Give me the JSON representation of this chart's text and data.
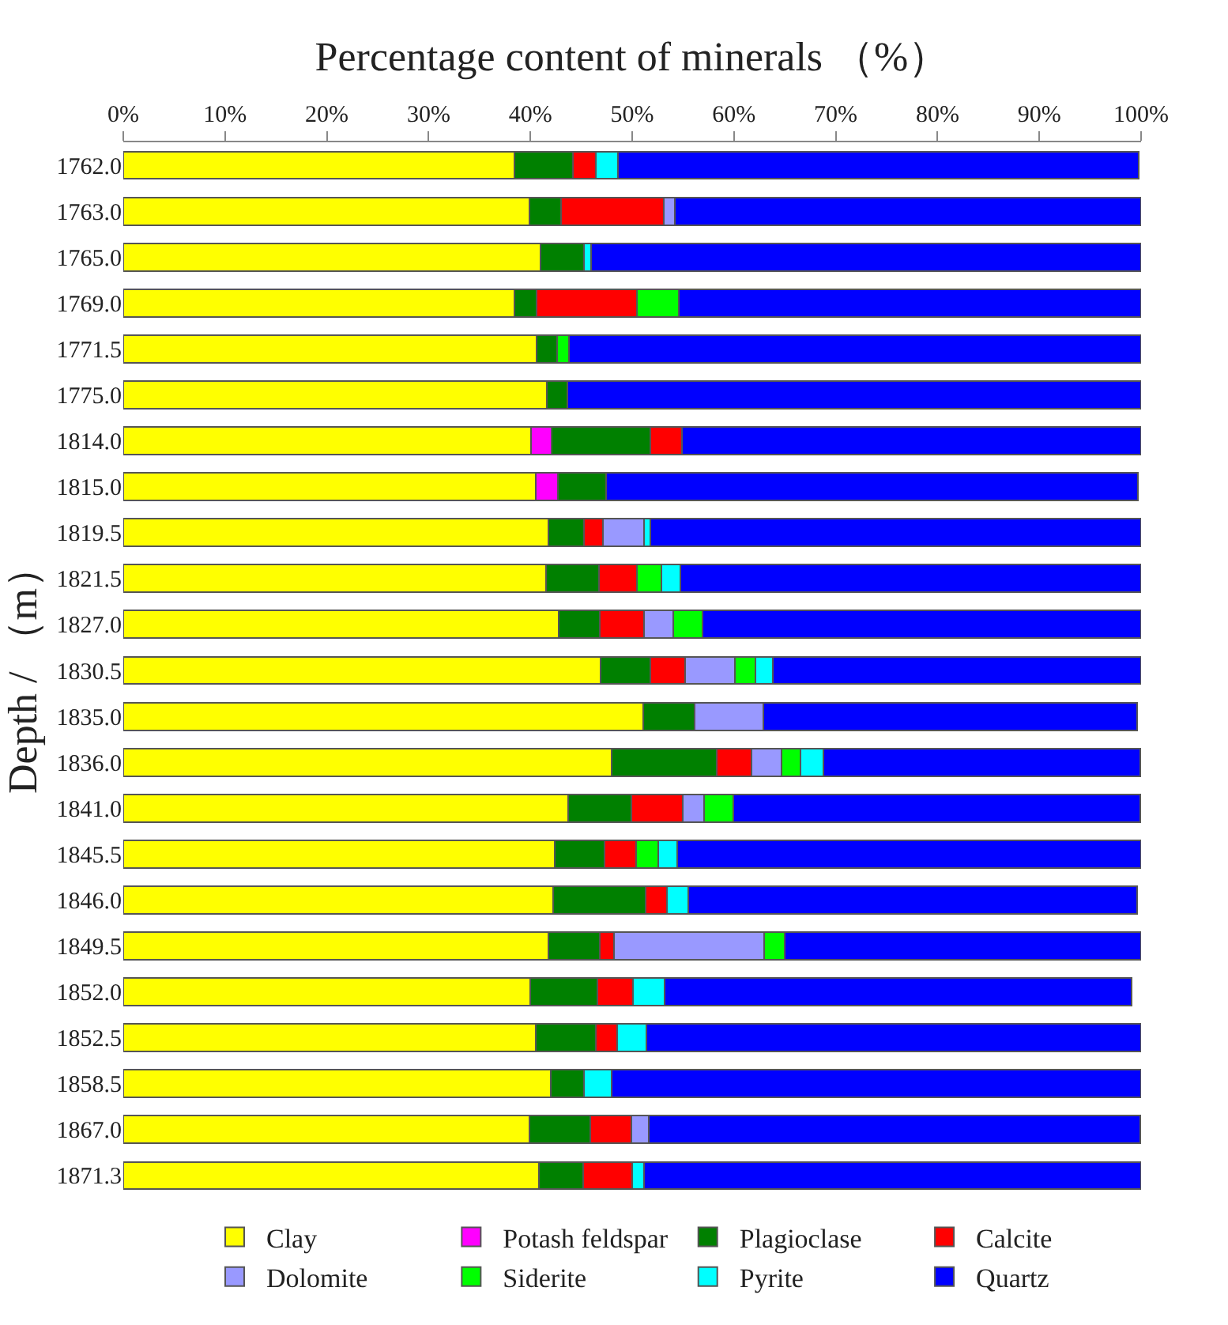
{
  "chart_data": {
    "type": "bar",
    "orientation": "horizontal",
    "stacked": true,
    "xlabel": "Percentage content of minerals （%）",
    "ylabel": "Depth / （m）",
    "categories": [
      "1762.0",
      "1763.0",
      "1765.0",
      "1769.0",
      "1771.5",
      "1775.0",
      "1814.0",
      "1815.0",
      "1819.5",
      "1821.5",
      "1827.0",
      "1830.5",
      "1835.0",
      "1836.0",
      "1841.0",
      "1845.5",
      "1846.0",
      "1849.5",
      "1852.0",
      "1852.5",
      "1858.5",
      "1867.0",
      "1871.3"
    ],
    "xlim": [
      0,
      100
    ],
    "xticks": [
      {
        "value": 0,
        "label": "0%"
      },
      {
        "value": 10,
        "label": "10%"
      },
      {
        "value": 20,
        "label": "20%"
      },
      {
        "value": 30,
        "label": "30%"
      },
      {
        "value": 40,
        "label": "40%"
      },
      {
        "value": 50,
        "label": "50%"
      },
      {
        "value": 60,
        "label": "60%"
      },
      {
        "value": 70,
        "label": "70%"
      },
      {
        "value": 80,
        "label": "80%"
      },
      {
        "value": 90,
        "label": "90%"
      },
      {
        "value": 100,
        "label": "100%"
      }
    ],
    "grid": false,
    "legend": "bottom",
    "series": [
      {
        "name": "Clay",
        "color": "#ffff00",
        "values": [
          38.4,
          39.9,
          41.0,
          38.4,
          40.6,
          41.6,
          40.1,
          40.5,
          41.8,
          41.5,
          42.8,
          46.9,
          51.1,
          48.0,
          43.7,
          42.4,
          42.2,
          41.8,
          40.0,
          40.5,
          42.0,
          39.9,
          40.8
        ]
      },
      {
        "name": "Potash feldspar",
        "color": "#ff00ff",
        "values": [
          null,
          null,
          null,
          null,
          null,
          null,
          2.0,
          2.2,
          null,
          null,
          null,
          null,
          null,
          null,
          null,
          null,
          null,
          null,
          null,
          null,
          null,
          null,
          null
        ]
      },
      {
        "name": "Plagioclase",
        "color": "#008000",
        "values": [
          5.8,
          3.1,
          4.3,
          2.2,
          2.0,
          2.0,
          9.7,
          4.7,
          3.5,
          5.2,
          4.0,
          4.9,
          5.0,
          10.3,
          6.2,
          4.9,
          9.1,
          5.0,
          6.6,
          5.9,
          3.3,
          6.0,
          4.4
        ]
      },
      {
        "name": "Calcite",
        "color": "#ff0000",
        "values": [
          2.2,
          10.1,
          null,
          9.9,
          null,
          null,
          3.1,
          null,
          1.8,
          3.8,
          4.4,
          3.4,
          null,
          3.4,
          5.1,
          3.1,
          2.1,
          1.4,
          3.5,
          2.1,
          null,
          4.0,
          4.8
        ]
      },
      {
        "name": "Dolomite",
        "color": "#9999ff",
        "values": [
          null,
          1.1,
          null,
          null,
          null,
          null,
          null,
          null,
          4.1,
          null,
          2.8,
          4.9,
          6.8,
          3.0,
          2.1,
          null,
          null,
          14.8,
          null,
          null,
          null,
          1.7,
          null
        ]
      },
      {
        "name": "Siderite",
        "color": "#00ff00",
        "values": [
          null,
          null,
          null,
          4.1,
          1.2,
          null,
          null,
          null,
          null,
          2.4,
          2.9,
          2.0,
          null,
          1.8,
          2.8,
          2.2,
          null,
          2.0,
          null,
          null,
          null,
          null,
          null
        ]
      },
      {
        "name": "Pyrite",
        "color": "#00ffff",
        "values": [
          2.2,
          null,
          0.7,
          null,
          null,
          null,
          null,
          null,
          0.6,
          1.8,
          null,
          1.7,
          null,
          2.3,
          null,
          1.8,
          2.1,
          null,
          3.1,
          2.9,
          2.7,
          null,
          1.2
        ]
      },
      {
        "name": "Quartz",
        "color": "#0000ff",
        "values": [
          51.2,
          45.8,
          54.0,
          45.4,
          56.2,
          56.4,
          45.1,
          52.3,
          48.2,
          45.3,
          43.1,
          36.2,
          36.7,
          31.1,
          40.0,
          45.6,
          44.1,
          35.0,
          45.9,
          48.6,
          52.0,
          48.3,
          48.8
        ]
      }
    ]
  }
}
